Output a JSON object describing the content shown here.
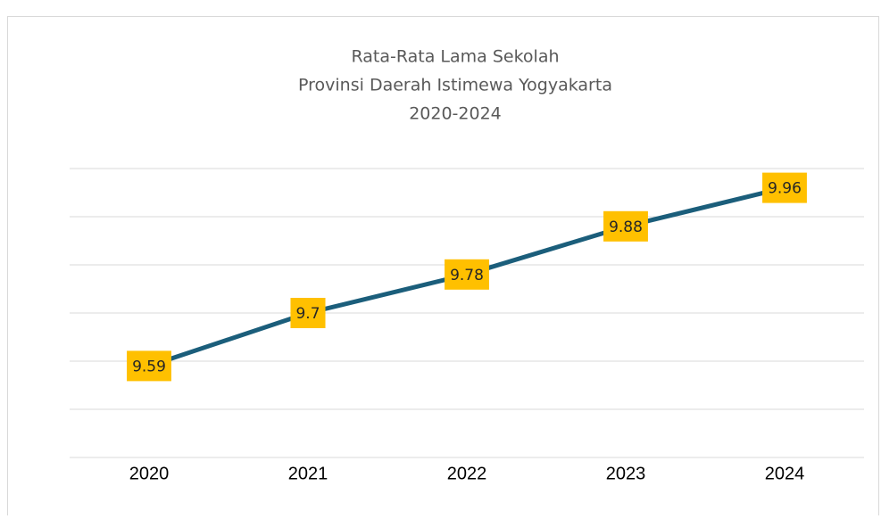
{
  "chart_data": {
    "type": "line",
    "title": [
      "Rata-Rata Lama Sekolah",
      "Provinsi Daerah Istimewa Yogyakarta",
      "2020-2024"
    ],
    "categories": [
      "2020",
      "2021",
      "2022",
      "2023",
      "2024"
    ],
    "values": [
      9.59,
      9.7,
      9.78,
      9.88,
      9.96
    ],
    "color": "#1b5e7b",
    "label_color": "#ffc000",
    "ylim": [
      9.4,
      10.0
    ],
    "yticks": [
      9.4,
      9.5,
      9.6,
      9.7,
      9.8,
      9.9,
      10.0
    ],
    "grid": true
  }
}
